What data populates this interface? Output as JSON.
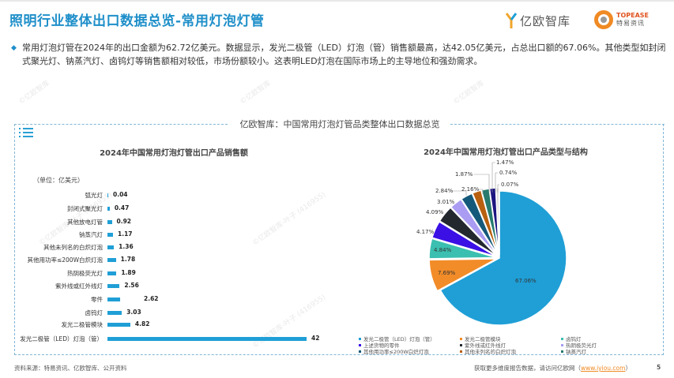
{
  "header": {
    "title": "照明行业整体出口数据总览-常用灯泡灯管",
    "logo_yiou": "亿欧智库",
    "logo_topease_en": "TOPEASE",
    "logo_topease_cn": "特易资讯"
  },
  "summary": {
    "bullet_icon": "diamond-bullet",
    "text": "常用灯泡灯管在2024年的出口金额为62.72亿美元。数据显示，发光二极管（LED）灯泡（管）销售额最高，达42.05亿美元，占总出口额的67.06%。其他类型如封闭式聚光灯、钠蒸汽灯、卤钨灯等销售额相对较低，市场份额较小。这表明LED灯泡在国际市场上的主导地位和强劲需求。"
  },
  "panel": {
    "title": "亿欧智库：中国常用灯泡灯管品类整体出口数据总览",
    "icon": "list-icon"
  },
  "watermarks": [
    "©亿欧智库-叶子 (416955)",
    "©亿欧智库-叶子 (416955)",
    "©亿欧智库-叶子 (416955)",
    "©亿欧智库",
    "©亿欧智库",
    "©亿欧智库"
  ],
  "colors": {
    "accent": "#1f8fc9",
    "bar": "#1f9fd6",
    "link": "#f08a24"
  },
  "chart_data": [
    {
      "type": "bar",
      "orientation": "horizontal",
      "title": "2024年中国常用灯泡灯管出口产品销售额",
      "unit_label": "（单位：亿美元）",
      "categories": [
        "弧光灯",
        "封闭式聚光灯",
        "其他放电灯管",
        "钠蒸汽灯",
        "其他未列名的白炽灯泡",
        "其他用功率≤200W白炽灯泡",
        "热阴极荧光灯",
        "紫外线或红外线灯",
        "零件",
        "卤钨灯",
        "发光二极管模块",
        "发光二极管（LED）灯泡（管）"
      ],
      "values": [
        0.04,
        0.47,
        0.92,
        1.17,
        1.36,
        1.78,
        1.89,
        2.56,
        2.62,
        3.03,
        4.82,
        42
      ],
      "value_labels": [
        "0.04",
        "0.47",
        "0.92",
        "1.17",
        "1.36",
        "1.78",
        "1.89",
        "2.56",
        "2.62",
        "3.03",
        "4.82",
        "42"
      ],
      "xlabel": "",
      "ylabel": "",
      "grid": false
    },
    {
      "type": "pie",
      "title": "2024年中国常用灯泡灯管出口产品类型与结构",
      "slices": [
        {
          "label": "发光二极管（LED）灯泡（管）",
          "value": 67.06,
          "color": "#1f9fd6"
        },
        {
          "label": "发光二极管模块",
          "value": 7.69,
          "color": "#f28c28"
        },
        {
          "label": "卤钨灯",
          "value": 4.84,
          "color": "#3bbfb0"
        },
        {
          "label": "上述货物的零件",
          "value": 4.17,
          "color": "#3a10e5"
        },
        {
          "label": "紫外线或红外线灯",
          "value": 4.09,
          "color": "#22282e"
        },
        {
          "label": "热阴极荧光灯",
          "value": 3.01,
          "color": "#a99cf2"
        },
        {
          "label": "其他用功率≤200W白炽灯泡",
          "value": 2.84,
          "color": "#14597a"
        },
        {
          "label": "其他未列名的白炽灯泡",
          "value": 2.16,
          "color": "#b8600f"
        },
        {
          "label": "钠蒸汽灯",
          "value": 1.87,
          "color": "#267a6e"
        },
        {
          "label": "其他放电灯管",
          "value": 1.47,
          "color": "#1c1580"
        },
        {
          "label": "封闭式聚光灯",
          "value": 0.74,
          "color": "#d9d9d9"
        },
        {
          "label": "弧光灯",
          "value": 0.07,
          "color": "#bfbfbf"
        }
      ],
      "value_labels": [
        "67.06%",
        "7.69%",
        "4.84%",
        "4.17%",
        "4.09%",
        "3.01%",
        "2.84%",
        "2.16%",
        "1.87%",
        "1.47%",
        "0.74%",
        "0.07%"
      ],
      "legend": [
        {
          "label": "发光二极管（LED）灯泡（管）",
          "color": "#1f9fd6"
        },
        {
          "label": "发光二极管模块",
          "color": "#f28c28"
        },
        {
          "label": "卤钨灯",
          "color": "#3bbfb0"
        },
        {
          "label": "上述货物的零件",
          "color": "#3a10e5"
        },
        {
          "label": "紫外线或红外线灯",
          "color": "#22282e"
        },
        {
          "label": "热阴极荧光灯",
          "color": "#a99cf2"
        },
        {
          "label": "其他用功率≤200W白炽灯泡",
          "color": "#14597a"
        },
        {
          "label": "其他未列名的白炽灯泡",
          "color": "#b8600f"
        },
        {
          "label": "钠蒸汽灯",
          "color": "#267a6e"
        }
      ],
      "legend_position": "bottom"
    }
  ],
  "footer": {
    "source": "资料来源：特易资讯、亿欧智库、公开资料",
    "more_text": "获取更多维度报告数据，请访问亿欧网（",
    "link": "www.iyiou.com",
    "close_paren": "）",
    "page": "5"
  }
}
